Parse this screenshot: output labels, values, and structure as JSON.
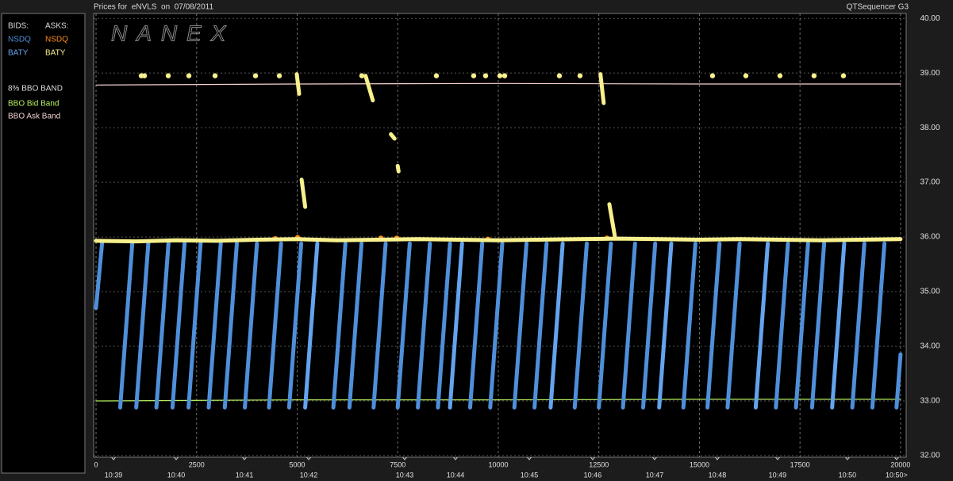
{
  "chart_data": {
    "type": "line",
    "title": "Prices for  eNVLS  on  07/08/2011",
    "app_label": "QTSequencer G3",
    "watermark": "NANEX",
    "legend_headers": {
      "bids": "BIDS:",
      "asks": "ASKS:",
      "band": "8% BBO BAND"
    },
    "xlim": [
      -60,
      20140
    ],
    "ylim": [
      31.97,
      40.09
    ],
    "xticks": [
      0,
      2500,
      5000,
      7500,
      10000,
      12500,
      15000,
      17500,
      20000
    ],
    "yticks": [
      {
        "value": 32,
        "label": "32.00"
      },
      {
        "value": 33,
        "label": "33.00"
      },
      {
        "value": 34,
        "label": "34.00"
      },
      {
        "value": 35,
        "label": "35.00"
      },
      {
        "value": 36,
        "label": "36.00"
      },
      {
        "value": 37,
        "label": "37.00"
      },
      {
        "value": 38,
        "label": "38.00"
      },
      {
        "value": 39,
        "label": "39.00"
      },
      {
        "value": 40,
        "label": "40.00"
      }
    ],
    "time_ticks": [
      {
        "value": 434,
        "label": "10:39"
      },
      {
        "value": 1992,
        "label": "10:40"
      },
      {
        "value": 3688,
        "label": "10:41"
      },
      {
        "value": 5286,
        "label": "10:42"
      },
      {
        "value": 7673,
        "label": "10:43"
      },
      {
        "value": 8935,
        "label": "10:44"
      },
      {
        "value": 10769,
        "label": "10:45"
      },
      {
        "value": 12347,
        "label": "10:46"
      },
      {
        "value": 13886,
        "label": "10:47"
      },
      {
        "value": 15444,
        "label": "10:48"
      },
      {
        "value": 16943,
        "label": "10:49"
      },
      {
        "value": 18679,
        "label": "10:50"
      },
      {
        "value": 19901,
        "label": "10:50>"
      }
    ],
    "grid": true,
    "series": [
      {
        "name": "NSDQ",
        "side": "bids",
        "color": "#4f8fda",
        "x": [
          0,
          150,
          150,
          600,
          900,
          900,
          1000,
          1300,
          1300,
          1500,
          1800,
          1800,
          1900,
          2200,
          2200,
          2300,
          2600,
          2600,
          2800,
          3100,
          3100,
          3200,
          3500,
          3500,
          3700,
          4000,
          4000,
          4300,
          4600,
          4600,
          4800,
          5100,
          5100,
          5900,
          6200,
          6200,
          6300,
          6600,
          6600,
          6900,
          7200,
          7200,
          7500,
          7800,
          7800,
          8000,
          8300,
          8300,
          8500,
          8800,
          8800,
          9300,
          9600,
          9600,
          9800,
          10100,
          10100,
          10400,
          10700,
          10700,
          10900,
          11200,
          11200,
          11900,
          12200,
          12200,
          12500,
          12800,
          12800,
          13100,
          13400,
          13400,
          13600,
          13900,
          13900,
          14600,
          14900,
          14900,
          15200,
          15500,
          15500,
          15700,
          16000,
          16000,
          16900,
          17200,
          17200,
          17400,
          17700,
          17700,
          17800,
          18100,
          18100,
          18800,
          19100,
          19100,
          19300,
          19600,
          19600,
          19900,
          20000
        ],
        "values": [
          34.7,
          35.88,
          null,
          32.88,
          35.88,
          null,
          32.88,
          35.88,
          null,
          32.88,
          35.88,
          null,
          32.88,
          35.88,
          null,
          32.88,
          35.88,
          null,
          32.88,
          35.88,
          null,
          32.88,
          35.88,
          null,
          32.88,
          35.88,
          null,
          32.88,
          35.88,
          null,
          32.88,
          35.88,
          null,
          32.88,
          35.88,
          null,
          32.88,
          35.88,
          null,
          32.88,
          35.88,
          null,
          32.88,
          35.88,
          null,
          32.88,
          35.88,
          null,
          32.88,
          35.88,
          null,
          32.88,
          35.88,
          null,
          32.88,
          35.88,
          null,
          32.88,
          35.88,
          null,
          32.88,
          35.88,
          null,
          32.88,
          35.88,
          null,
          32.88,
          35.88,
          null,
          32.88,
          35.88,
          null,
          32.88,
          35.88,
          null,
          32.88,
          35.88,
          null,
          32.88,
          35.88,
          null,
          32.88,
          35.88,
          null,
          32.88,
          35.88,
          null,
          32.88,
          35.88,
          null,
          32.88,
          35.88,
          null,
          32.88,
          35.88,
          null,
          32.88,
          35.88,
          null,
          32.88,
          33.85
        ]
      },
      {
        "name": "BATY",
        "side": "bids",
        "color": "#64a4ee",
        "x": [
          5200,
          5500,
          5500,
          8800,
          9100,
          9100,
          11300,
          11600,
          11600,
          14000,
          14300,
          14300,
          16400,
          16700,
          16700,
          18300,
          18600
        ],
        "values": [
          32.88,
          35.88,
          null,
          32.88,
          35.88,
          null,
          32.88,
          35.88,
          null,
          32.88,
          35.88,
          null,
          32.88,
          35.88,
          null,
          32.88,
          35.88
        ]
      },
      {
        "name": "NSDQ",
        "side": "asks",
        "color": "#ff8c1a",
        "x": [
          4458,
          4458,
          5010,
          5010,
          7081,
          7081,
          7475,
          7475,
          9743,
          9743,
          12702
        ],
        "values": [
          35.97,
          null,
          35.99,
          null,
          35.98,
          null,
          35.98,
          null,
          35.96,
          null,
          35.98
        ]
      },
      {
        "name": "BATY",
        "side": "asks",
        "color": "#f7f08c",
        "x": [
          0,
          1000,
          2000,
          3000,
          4000,
          5000,
          6000,
          7000,
          8000,
          9000,
          10000,
          11000,
          12000,
          13000,
          14000,
          15000,
          16000,
          17000,
          18000,
          19000,
          20000,
          20000,
          1124,
          1124,
          1203,
          1203,
          1795,
          1795,
          2308,
          2308,
          2959,
          2959,
          3964,
          3964,
          4556,
          4556,
          6607,
          6607,
          8461,
          8461,
          9388,
          9388,
          9684,
          9684,
          10039,
          10039,
          10158,
          10158,
          11519,
          11519,
          12032,
          12032,
          15325,
          15325,
          16154,
          16154,
          17002,
          17002,
          17850,
          17850,
          18580,
          18580,
          4990,
          5050,
          5050,
          6700,
          6880,
          6880,
          12540,
          12620,
          12620,
          7330,
          7420,
          7420,
          7500,
          7520,
          7520,
          5110,
          5200,
          5200,
          12760,
          12900
        ],
        "values": [
          35.93,
          35.92,
          35.94,
          35.93,
          35.95,
          35.96,
          35.94,
          35.95,
          35.96,
          35.95,
          35.94,
          35.95,
          35.96,
          35.97,
          35.96,
          35.95,
          35.96,
          35.95,
          35.94,
          35.95,
          35.96,
          null,
          38.95,
          null,
          38.95,
          null,
          38.95,
          null,
          38.95,
          null,
          38.95,
          null,
          38.95,
          null,
          38.95,
          null,
          38.95,
          null,
          38.95,
          null,
          38.95,
          null,
          38.95,
          null,
          38.95,
          null,
          38.95,
          null,
          38.95,
          null,
          38.95,
          null,
          38.95,
          null,
          38.95,
          null,
          38.95,
          null,
          38.95,
          null,
          38.95,
          null,
          38.98,
          38.62,
          null,
          38.95,
          38.5,
          null,
          38.98,
          38.45,
          null,
          37.88,
          37.8,
          null,
          37.3,
          37.2,
          null,
          37.05,
          36.55,
          null,
          36.6,
          36.0
        ]
      },
      {
        "name": "BBO Bid Band",
        "side": "band",
        "color": "#b8f060",
        "x": [
          0,
          5000,
          10000,
          15000,
          20000
        ],
        "values": [
          33.0,
          33.02,
          33.02,
          33.03,
          33.03
        ]
      },
      {
        "name": "BBO Ask Band",
        "side": "band",
        "color": "#f5d0d0",
        "x": [
          0,
          5000,
          10000,
          15000,
          20000
        ],
        "values": [
          38.78,
          38.8,
          38.81,
          38.8,
          38.8
        ]
      }
    ]
  }
}
